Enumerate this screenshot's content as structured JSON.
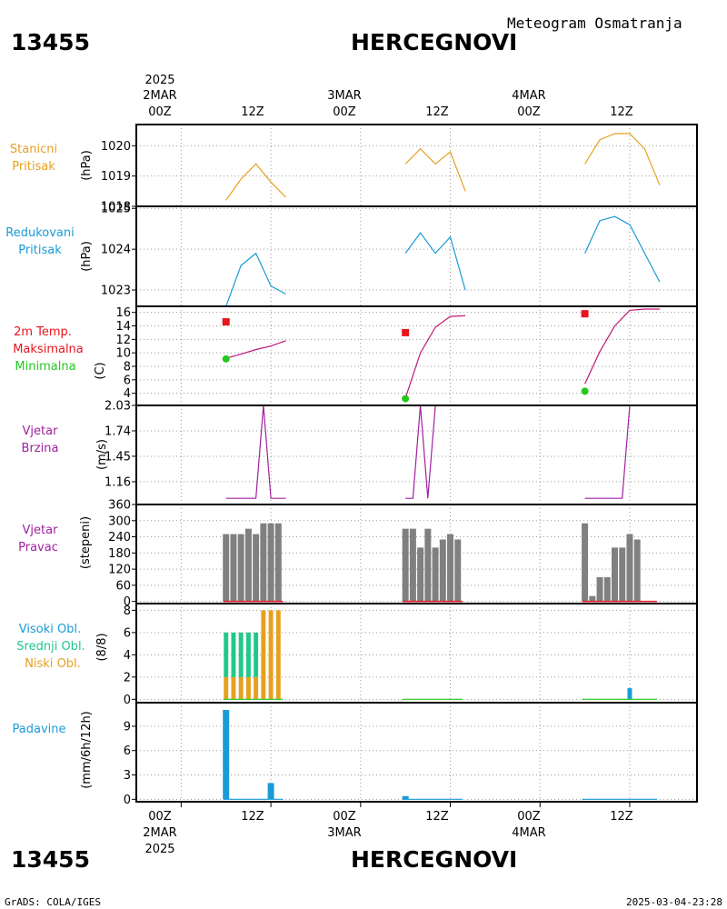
{
  "header": {
    "station_id": "13455",
    "station_name": "HERCEGNOVI",
    "subtitle": "Meteogram Osmatranja"
  },
  "time_axis": {
    "year": "2025",
    "top_labels": [
      {
        "day": "2MAR",
        "hour": "00Z",
        "year": "2025"
      },
      {
        "day": "",
        "hour": "12Z",
        "year": ""
      },
      {
        "day": "3MAR",
        "hour": "00Z",
        "year": ""
      },
      {
        "day": "",
        "hour": "12Z",
        "year": ""
      },
      {
        "day": "4MAR",
        "hour": "00Z",
        "year": ""
      },
      {
        "day": "",
        "hour": "12Z",
        "year": ""
      }
    ],
    "bottom_labels": [
      {
        "hour": "00Z",
        "day": "2MAR",
        "year": "2025"
      },
      {
        "hour": "12Z",
        "day": "",
        "year": ""
      },
      {
        "hour": "00Z",
        "day": "3MAR",
        "year": ""
      },
      {
        "hour": "12Z",
        "day": "",
        "year": ""
      },
      {
        "hour": "00Z",
        "day": "4MAR",
        "year": ""
      },
      {
        "hour": "12Z",
        "day": "",
        "year": ""
      }
    ]
  },
  "panel_labels": {
    "station_pressure": [
      "Stanicni",
      "Pritisak"
    ],
    "reduced_pressure": [
      "Redukovani",
      "Pritisak"
    ],
    "temperature": [
      "2m Temp.",
      "Maksimalna",
      "Minimalna"
    ],
    "wind_speed": [
      "Vjetar",
      "Brzina"
    ],
    "wind_direction": [
      "Vjetar",
      "Pravac"
    ],
    "clouds": [
      "Visoki Obl.",
      "Srednji Obl.",
      "Niski Obl."
    ],
    "precip": [
      "Padavine"
    ]
  },
  "units": {
    "station_pressure": "(hPa)",
    "reduced_pressure": "(hPa)",
    "temperature": "(C)",
    "wind_speed": "(m/s)",
    "wind_direction": "(stepeni)",
    "clouds": "(8/8)",
    "precip": "(mm/6h/12h)"
  },
  "footer": {
    "left": "GrADS: COLA/IGES",
    "right": "2025-03-04-23:28"
  },
  "colors": {
    "station_pressure": "#e6a020",
    "reduced_pressure": "#1a9bd7",
    "temp_line": "#c01878",
    "temp_max": "#e8141e",
    "temp_min": "#22c81e",
    "wind_speed": "#a020a0",
    "wind_dir_bars": "#808080",
    "wind_dir_base": "#e8141e",
    "cloud_high": "#1a9bd7",
    "cloud_mid": "#22c88a",
    "cloud_low": "#e6a020",
    "precip": "#1a9bd7",
    "precip_zero": "#22c81e"
  },
  "chart_data": [
    {
      "type": "line",
      "id": "station_pressure",
      "x_unit": "hours since 2MAR 00Z",
      "xlim": [
        -6,
        69
      ],
      "ylim": [
        1018,
        1020.7
      ],
      "yticks": [
        1018,
        1019,
        1020
      ],
      "series": [
        {
          "x": [
            6,
            8,
            10,
            12,
            14
          ],
          "y": [
            1018.2,
            1018.9,
            1019.4,
            1018.8,
            1018.3
          ]
        },
        {
          "x": [
            30,
            32,
            34,
            36,
            38
          ],
          "y": [
            1019.4,
            1019.9,
            1019.4,
            1019.8,
            1018.5
          ]
        },
        {
          "x": [
            54,
            56,
            58,
            60,
            62,
            64
          ],
          "y": [
            1019.4,
            1020.2,
            1020.4,
            1020.4,
            1019.9,
            1018.7
          ]
        }
      ]
    },
    {
      "type": "line",
      "id": "reduced_pressure",
      "x_unit": "hours since 2MAR 00Z",
      "xlim": [
        -6,
        69
      ],
      "ylim": [
        1022.6,
        1025.05
      ],
      "yticks": [
        1023,
        1024,
        1025
      ],
      "series": [
        {
          "x": [
            6,
            8,
            10,
            12,
            14
          ],
          "y": [
            1022.6,
            1023.6,
            1023.9,
            1023.1,
            1022.9
          ]
        },
        {
          "x": [
            30,
            32,
            34,
            36,
            38
          ],
          "y": [
            1023.9,
            1024.4,
            1023.9,
            1024.3,
            1023.0
          ]
        },
        {
          "x": [
            54,
            56,
            58,
            60,
            62,
            64
          ],
          "y": [
            1023.9,
            1024.7,
            1024.8,
            1024.6,
            1023.9,
            1023.2
          ]
        }
      ]
    },
    {
      "type": "line",
      "id": "temperature",
      "x_unit": "hours since 2MAR 00Z",
      "xlim": [
        -6,
        69
      ],
      "ylim": [
        2.2,
        16.9
      ],
      "yticks": [
        4,
        6,
        8,
        10,
        12,
        14,
        16
      ],
      "series": [
        {
          "x": [
            6,
            8,
            10,
            12,
            14
          ],
          "y": [
            9.2,
            9.8,
            10.5,
            11.0,
            11.8
          ]
        },
        {
          "x": [
            30,
            32,
            34,
            36,
            38
          ],
          "y": [
            3.3,
            10.0,
            13.8,
            15.4,
            15.5
          ]
        },
        {
          "x": [
            54,
            56,
            58,
            60,
            62,
            64
          ],
          "y": [
            5.4,
            10.2,
            14.0,
            16.3,
            16.5,
            16.5
          ]
        }
      ],
      "max_points": {
        "x": [
          6,
          30,
          54
        ],
        "y": [
          14.6,
          13.0,
          15.8
        ]
      },
      "min_points": {
        "x": [
          6,
          30,
          54
        ],
        "y": [
          9.1,
          3.2,
          4.3
        ]
      }
    },
    {
      "type": "line",
      "id": "wind_speed",
      "x_unit": "hours since 2MAR 00Z",
      "xlim": [
        -6,
        69
      ],
      "ylim": [
        0.9,
        2.03
      ],
      "yticks": [
        1.16,
        1.45,
        1.74,
        2.03
      ],
      "series": [
        {
          "x": [
            6,
            8,
            10,
            11,
            12,
            14
          ],
          "y": [
            0.97,
            0.97,
            0.97,
            2.03,
            0.97,
            0.97
          ]
        },
        {
          "x": [
            30,
            31,
            32,
            33,
            34,
            36,
            38
          ],
          "y": [
            0.97,
            0.97,
            2.03,
            0.97,
            2.03,
            2.03,
            2.03
          ]
        },
        {
          "x": [
            54,
            56,
            58,
            59,
            60,
            62,
            64
          ],
          "y": [
            0.97,
            0.97,
            0.97,
            0.97,
            2.03,
            2.03,
            2.03
          ]
        }
      ]
    },
    {
      "type": "bar",
      "id": "wind_direction",
      "x_unit": "hours since 2MAR 00Z",
      "xlim": [
        -6,
        69
      ],
      "ylim": [
        -8,
        360
      ],
      "yticks": [
        0,
        60,
        120,
        180,
        240,
        300,
        360
      ],
      "x": [
        6,
        7,
        8,
        9,
        10,
        11,
        12,
        13,
        30,
        31,
        32,
        33,
        34,
        35,
        36,
        37,
        54,
        55,
        56,
        57,
        58,
        59,
        60,
        61
      ],
      "values": [
        250,
        250,
        250,
        270,
        250,
        290,
        290,
        290,
        270,
        270,
        200,
        270,
        200,
        230,
        250,
        230,
        290,
        20,
        90,
        90,
        200,
        200,
        250,
        230
      ]
    },
    {
      "type": "bar",
      "id": "clouds",
      "x_unit": "hours since 2MAR 00Z",
      "xlim": [
        -6,
        69
      ],
      "ylim": [
        -0.3,
        8.6
      ],
      "yticks": [
        0,
        2,
        4,
        6,
        8
      ],
      "x": [
        6,
        7,
        8,
        9,
        10,
        11,
        12,
        13
      ],
      "series": [
        {
          "name": "Niski Obl.",
          "values": [
            2,
            2,
            2,
            2,
            2,
            8,
            8,
            8
          ]
        },
        {
          "name": "Srednji Obl.",
          "values": [
            4,
            4,
            4,
            4,
            4,
            0,
            0,
            0
          ]
        },
        {
          "name": "Visoki Obl.",
          "values": [
            0,
            0,
            0,
            0,
            0,
            0,
            0,
            0
          ]
        }
      ],
      "extra_bars": [
        {
          "x": 60,
          "value": 1,
          "series": "Visoki Obl."
        }
      ],
      "zero_lines": [
        [
          6,
          14
        ],
        [
          30,
          38
        ],
        [
          54,
          64
        ]
      ]
    },
    {
      "type": "bar",
      "id": "precip",
      "x_unit": "hours since 2MAR 00Z",
      "xlim": [
        -6,
        69
      ],
      "ylim": [
        -0.3,
        11.9
      ],
      "yticks": [
        0,
        3,
        6,
        9
      ],
      "x": [
        6,
        12,
        30
      ],
      "values": [
        11.0,
        2.0,
        0.4
      ],
      "zero_lines": [
        [
          6,
          14
        ],
        [
          30,
          38
        ],
        [
          54,
          64
        ]
      ]
    }
  ]
}
